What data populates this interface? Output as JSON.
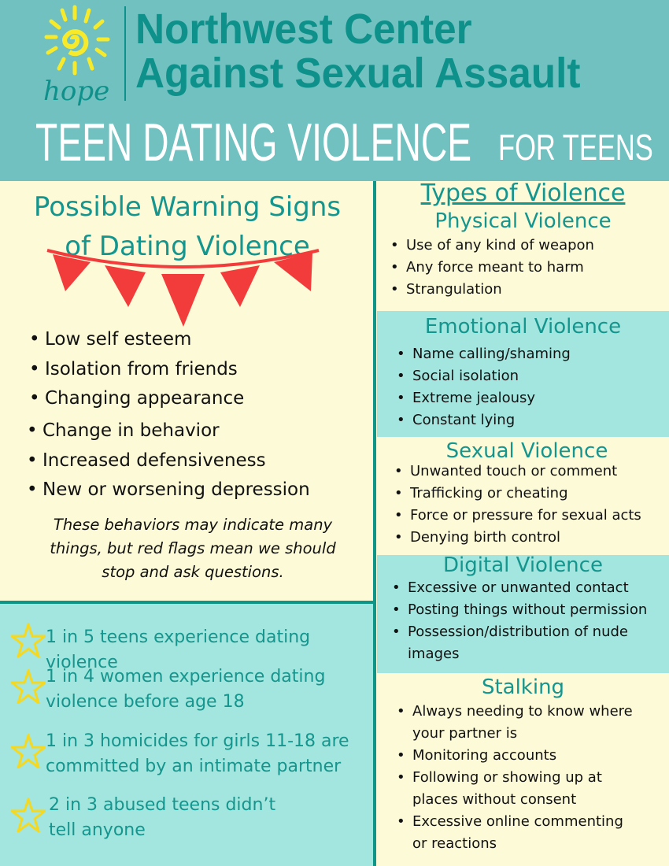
{
  "header": {
    "logo_text": "hope",
    "org_line1": "Northwest Center",
    "org_line2": "Against Sexual Assault",
    "title": "TEEN DATING VIOLENCE",
    "audience": "FOR TEENS"
  },
  "warning_signs": {
    "title_line1": "Possible Warning Signs",
    "title_line2": "of Dating Violence",
    "items": [
      "Low self esteem",
      "Isolation from friends",
      "Changing appearance",
      "Change in behavior",
      "Increased defensiveness",
      "New or worsening depression"
    ],
    "note": "These behaviors may indicate many things, but red flags mean we should stop and ask questions."
  },
  "stats": [
    "1 in 5 teens experience dating violence",
    "1 in 4 women experience dating violence before age 18",
    "1 in 3 homicides for girls 11-18 are committed by an intimate partner",
    "2 in 3 abused teens didn’t tell anyone"
  ],
  "types": {
    "title": "Types of Violence",
    "sections": [
      {
        "title": "Physical Violence",
        "items": [
          "Use of any kind of weapon",
          "Any force meant to harm",
          "Strangulation"
        ]
      },
      {
        "title": "Emotional Violence",
        "items": [
          "Name calling/shaming",
          "Social isolation",
          "Extreme jealousy",
          "Constant lying"
        ]
      },
      {
        "title": "Sexual Violence",
        "items": [
          "Unwanted touch or comment",
          "Trafficking or cheating",
          "Force or pressure for sexual acts",
          "Denying birth control"
        ]
      },
      {
        "title": "Digital Violence",
        "items": [
          "Excessive or unwanted contact",
          "Posting things without permission",
          "Possession/distribution of nude images"
        ]
      },
      {
        "title": "Stalking",
        "items": [
          "Always needing to know where your partner is",
          "Monitoring accounts",
          "Following or showing up at places without consent",
          "Excessive online commenting or reactions"
        ]
      }
    ]
  },
  "colors": {
    "header": "#71c1c0",
    "teal_text": "#14958d",
    "cream": "#fdfad8",
    "mint": "#a3e6df",
    "divider": "#0f9488",
    "flags": "#f23c3c",
    "star": "#f5d820",
    "sun": "#f7ea2a"
  }
}
